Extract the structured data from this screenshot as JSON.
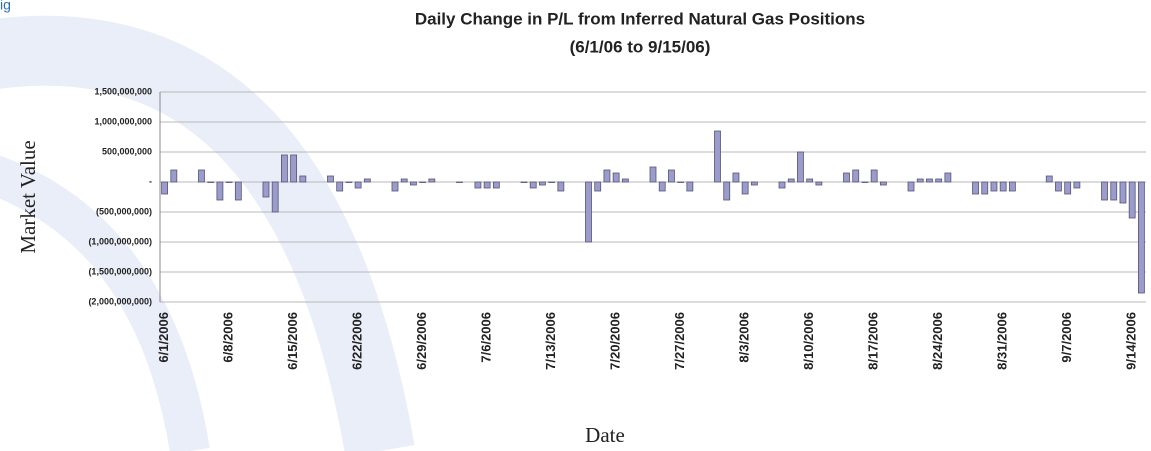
{
  "figure_label": "ig",
  "chart_data": {
    "type": "bar",
    "title": "Daily Change in P/L from Inferred Natural Gas Positions",
    "subtitle": "(6/1/06 to 9/15/06)",
    "y_label": "Market Value",
    "x_label": "Date",
    "color": "#9b9bcc",
    "grid": true,
    "ylim": [
      -2000000000,
      1500000000
    ],
    "yticks": [
      {
        "value": -2000000000,
        "label": "(2,000,000,000)"
      },
      {
        "value": -1500000000,
        "label": "(1,500,000,000)"
      },
      {
        "value": -1000000000,
        "label": "(1,000,000,000)"
      },
      {
        "value": -500000000,
        "label": "(500,000,000)"
      },
      {
        "value": 0,
        "label": "-"
      },
      {
        "value": 500000000,
        "label": "500,000,000"
      },
      {
        "value": 1000000000,
        "label": "1,000,000,000"
      },
      {
        "value": 1500000000,
        "label": "1,500,000,000"
      }
    ],
    "categories": [
      "6/1/2006",
      null,
      null,
      null,
      null,
      null,
      null,
      "6/8/2006",
      null,
      null,
      null,
      null,
      null,
      null,
      "6/15/2006",
      null,
      null,
      null,
      null,
      null,
      null,
      "6/22/2006",
      null,
      null,
      null,
      null,
      null,
      null,
      "6/29/2006",
      null,
      null,
      null,
      null,
      null,
      null,
      "7/6/2006",
      null,
      null,
      null,
      null,
      null,
      null,
      "7/13/2006",
      null,
      null,
      null,
      null,
      null,
      null,
      "7/20/2006",
      null,
      null,
      null,
      null,
      null,
      null,
      "7/27/2006",
      null,
      null,
      null,
      null,
      null,
      null,
      "8/3/2006",
      null,
      null,
      null,
      null,
      null,
      null,
      "8/10/2006",
      null,
      null,
      null,
      null,
      null,
      null,
      "8/17/2006",
      null,
      null,
      null,
      null,
      null,
      null,
      "8/24/2006",
      null,
      null,
      null,
      null,
      null,
      null,
      "8/31/2006",
      null,
      null,
      null,
      null,
      null,
      null,
      "9/7/2006",
      null,
      null,
      null,
      null,
      null,
      null,
      "9/14/2006",
      null
    ],
    "values": [
      -200000000,
      200000000,
      null,
      null,
      200000000,
      0,
      -300000000,
      0,
      -300000000,
      null,
      null,
      -250000000,
      -500000000,
      450000000,
      450000000,
      100000000,
      null,
      null,
      100000000,
      -150000000,
      0,
      -100000000,
      50000000,
      null,
      null,
      -150000000,
      50000000,
      -50000000,
      0,
      50000000,
      null,
      null,
      0,
      null,
      -100000000,
      -100000000,
      -100000000,
      null,
      null,
      0,
      -100000000,
      -50000000,
      0,
      -150000000,
      null,
      null,
      -1000000000,
      -150000000,
      200000000,
      150000000,
      50000000,
      null,
      null,
      250000000,
      -150000000,
      200000000,
      0,
      -150000000,
      null,
      null,
      850000000,
      -300000000,
      150000000,
      -200000000,
      -50000000,
      null,
      null,
      -100000000,
      50000000,
      500000000,
      50000000,
      -50000000,
      null,
      null,
      150000000,
      200000000,
      0,
      200000000,
      -50000000,
      null,
      null,
      -150000000,
      50000000,
      50000000,
      50000000,
      150000000,
      null,
      null,
      -200000000,
      -200000000,
      -150000000,
      -150000000,
      -150000000,
      null,
      null,
      null,
      100000000,
      -150000000,
      -200000000,
      -100000000,
      null,
      null,
      -300000000,
      -300000000,
      -350000000,
      -600000000,
      -1850000000
    ]
  }
}
